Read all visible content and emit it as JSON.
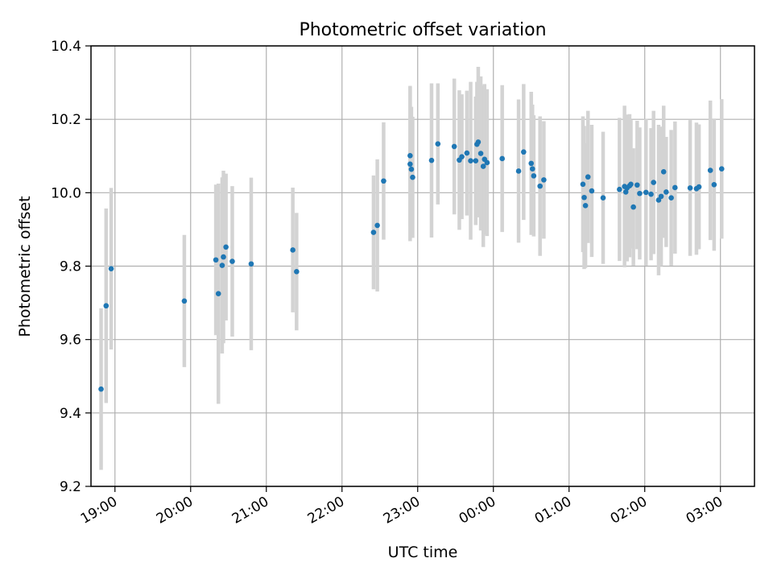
{
  "chart_data": {
    "type": "scatter",
    "title": "Photometric offset variation",
    "xlabel": "UTC time",
    "ylabel": "Photometric offset",
    "x_is_time": true,
    "xlim": [
      "18:41",
      "03:27"
    ],
    "ylim": [
      9.2,
      10.4
    ],
    "grid": true,
    "x_ticks": [
      "19:00",
      "20:00",
      "21:00",
      "22:00",
      "23:00",
      "00:00",
      "01:00",
      "02:00",
      "03:00"
    ],
    "y_ticks": [
      "9.2",
      "9.4",
      "9.6",
      "9.8",
      "10.0",
      "10.2",
      "10.4"
    ],
    "y_tick_values": [
      9.2,
      9.4,
      9.6,
      9.8,
      10.0,
      10.2,
      10.4
    ],
    "colors": {
      "point": "#1f77b4",
      "errorbar": "#d3d3d3",
      "grid": "#b0b0b0"
    },
    "series": [
      {
        "x": [
          "18:49",
          "18:53",
          "18:57",
          "19:55",
          "20:20",
          "20:22",
          "20:25",
          "20:26",
          "20:28",
          "20:33",
          "20:48",
          "21:21",
          "21:24",
          "22:25",
          "22:28",
          "22:33",
          "22:54",
          "22:54",
          "22:55",
          "22:56",
          "23:11",
          "23:16",
          "23:29",
          "23:33",
          "23:35",
          "23:39",
          "23:42",
          "23:46",
          "23:47",
          "23:48",
          "23:50",
          "23:52",
          "23:53",
          "23:55",
          "24:07",
          "24:20",
          "24:24",
          "24:30",
          "24:31",
          "24:32",
          "24:37",
          "24:40",
          "25:11",
          "25:12",
          "25:13",
          "25:15",
          "25:18",
          "25:27",
          "25:40",
          "25:44",
          "25:45",
          "25:46",
          "25:48",
          "25:49",
          "25:51",
          "25:54",
          "25:56",
          "26:01",
          "26:05",
          "26:07",
          "26:11",
          "26:13",
          "26:15",
          "26:17",
          "26:21",
          "26:24",
          "26:36",
          "26:41",
          "26:43",
          "26:52",
          "26:55",
          "27:01"
        ],
        "y": [
          9.465,
          9.692,
          9.793,
          9.705,
          9.817,
          9.725,
          9.802,
          9.825,
          9.852,
          9.813,
          9.806,
          9.844,
          9.785,
          9.892,
          9.911,
          10.032,
          10.101,
          10.078,
          10.064,
          10.042,
          10.088,
          10.133,
          10.126,
          10.089,
          10.098,
          10.108,
          10.087,
          10.087,
          10.132,
          10.138,
          10.107,
          10.072,
          10.091,
          10.082,
          10.093,
          10.059,
          10.111,
          10.08,
          10.065,
          10.046,
          10.018,
          10.035,
          10.023,
          9.987,
          9.965,
          10.043,
          10.005,
          9.986,
          10.009,
          10.017,
          10.002,
          10.013,
          10.019,
          10.023,
          9.961,
          10.021,
          9.998,
          10.001,
          9.996,
          10.028,
          9.98,
          9.99,
          10.057,
          10.002,
          9.986,
          10.014,
          10.013,
          10.011,
          10.016,
          10.061,
          10.022,
          10.065
        ],
        "yerr": [
          0.22,
          0.265,
          0.22,
          0.18,
          0.205,
          0.3,
          0.24,
          0.235,
          0.2,
          0.205,
          0.235,
          0.17,
          0.16,
          0.155,
          0.18,
          0.16,
          0.19,
          0.21,
          0.17,
          0.165,
          0.21,
          0.165,
          0.185,
          0.19,
          0.17,
          0.17,
          0.215,
          0.175,
          0.17,
          0.205,
          0.21,
          0.22,
          0.205,
          0.2,
          0.2,
          0.195,
          0.185,
          0.195,
          0.175,
          0.165,
          0.19,
          0.16,
          0.185,
          0.195,
          0.17,
          0.18,
          0.18,
          0.18,
          0.195,
          0.22,
          0.17,
          0.2,
          0.195,
          0.175,
          0.16,
          0.175,
          0.18,
          0.2,
          0.18,
          0.195,
          0.205,
          0.19,
          0.18,
          0.15,
          0.185,
          0.18,
          0.185,
          0.18,
          0.17,
          0.19,
          0.18,
          0.19
        ]
      }
    ]
  }
}
